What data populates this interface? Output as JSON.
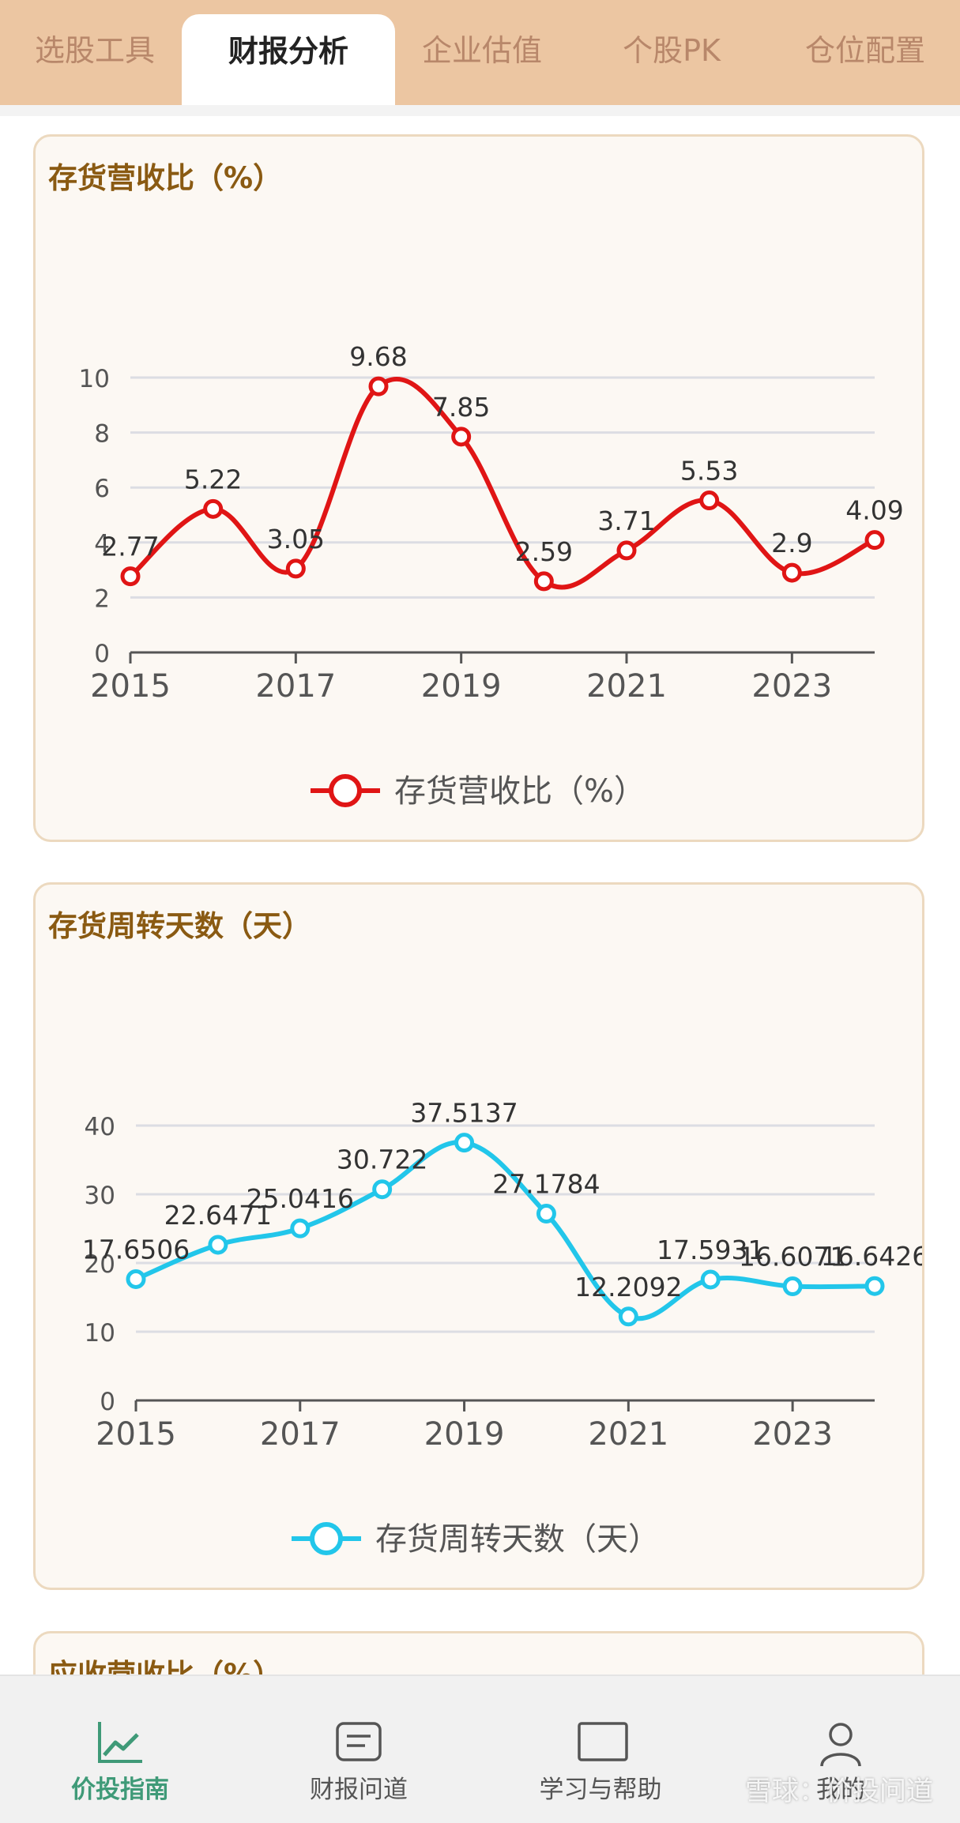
{
  "tabs": [
    {
      "label": "选股工具",
      "active": false
    },
    {
      "label": "财报分析",
      "active": true
    },
    {
      "label": "企业估值",
      "active": false
    },
    {
      "label": "个股PK",
      "active": false
    },
    {
      "label": "仓位配置",
      "active": false
    }
  ],
  "cards": [
    {
      "title": "存货营收比（%）"
    },
    {
      "title": "存货周转天数（天）"
    },
    {
      "title": "应收营收比（%）"
    }
  ],
  "chart_data": [
    {
      "type": "line",
      "title": "存货营收比（%）",
      "x": [
        2015,
        2016,
        2017,
        2018,
        2019,
        2020,
        2021,
        2022,
        2023,
        2024
      ],
      "xticks": [
        "2015",
        "2017",
        "2019",
        "2021",
        "2023"
      ],
      "yticks": [
        "0",
        "2",
        "4",
        "6",
        "8",
        "10"
      ],
      "ylim": [
        0,
        10
      ],
      "grid": true,
      "legend": "bottom",
      "color": "#e01515",
      "series": [
        {
          "name": "存货营收比（%）",
          "values": [
            2.77,
            5.22,
            3.05,
            9.68,
            7.85,
            2.59,
            3.71,
            5.53,
            2.9,
            4.09
          ]
        }
      ]
    },
    {
      "type": "line",
      "title": "存货周转天数（天）",
      "x": [
        2015,
        2016,
        2017,
        2018,
        2019,
        2020,
        2021,
        2022,
        2023,
        2024
      ],
      "xticks": [
        "2015",
        "2017",
        "2019",
        "2021",
        "2023"
      ],
      "yticks": [
        "0",
        "10",
        "20",
        "30",
        "40"
      ],
      "ylim": [
        0,
        40
      ],
      "grid": true,
      "legend": "bottom",
      "color": "#22c6ea",
      "series": [
        {
          "name": "存货周转天数（天）",
          "values": [
            17.6506,
            22.6471,
            25.0416,
            30.722,
            37.5137,
            27.1784,
            12.2092,
            17.5931,
            16.6071,
            16.6426
          ]
        }
      ]
    }
  ],
  "bottom_nav": [
    {
      "label": "价投指南",
      "icon": "trend-chart-icon",
      "active": true
    },
    {
      "label": "财报问道",
      "icon": "document-icon",
      "active": false
    },
    {
      "label": "学习与帮助",
      "icon": "book-icon",
      "active": false
    },
    {
      "label": "我的",
      "icon": "user-icon",
      "active": false
    }
  ],
  "watermark": "雪球：价投问道"
}
